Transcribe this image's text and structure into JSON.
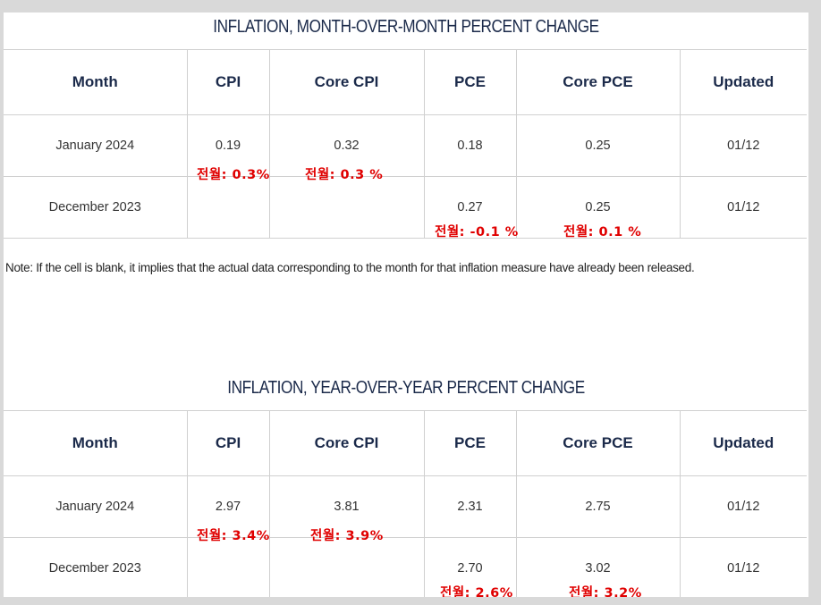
{
  "mom": {
    "title": "INFLATION, MONTH-OVER-MONTH PERCENT CHANGE",
    "headers": [
      "Month",
      "CPI",
      "Core CPI",
      "PCE",
      "Core PCE",
      "Updated"
    ],
    "rows": [
      {
        "month": "January 2024",
        "cpi": "0.19",
        "core_cpi": "0.32",
        "pce": "0.18",
        "core_pce": "0.25",
        "updated": "01/12"
      },
      {
        "month": "December 2023",
        "cpi": "",
        "core_cpi": "",
        "pce": "0.27",
        "core_pce": "0.25",
        "updated": "01/12"
      }
    ],
    "annotations": {
      "jan_cpi": "전월: 0.3%",
      "jan_core_cpi": "전월: 0.3 %",
      "dec_pce": "전월: -0.1 %",
      "dec_core_pce": "전월: 0.1 %"
    }
  },
  "note": "Note: If the cell is blank, it implies that the actual data corresponding to the month for that inflation measure have already been released.",
  "yoy": {
    "title": "INFLATION, YEAR-OVER-YEAR PERCENT CHANGE",
    "headers": [
      "Month",
      "CPI",
      "Core CPI",
      "PCE",
      "Core PCE",
      "Updated"
    ],
    "rows": [
      {
        "month": "January 2024",
        "cpi": "2.97",
        "core_cpi": "3.81",
        "pce": "2.31",
        "core_pce": "2.75",
        "updated": "01/12"
      },
      {
        "month": "December 2023",
        "cpi": "",
        "core_cpi": "",
        "pce": "2.70",
        "core_pce": "3.02",
        "updated": "01/12"
      }
    ],
    "annotations": {
      "jan_cpi": "전월: 3.4%",
      "jan_core_cpi": "전월: 3.9%",
      "dec_pce": "전월: 2.6%",
      "dec_core_pce": "전월: 3.2%"
    }
  },
  "colors": {
    "header_text": "#1b2a4a",
    "annotation": "#e00000",
    "border": "#d0d0d0"
  }
}
